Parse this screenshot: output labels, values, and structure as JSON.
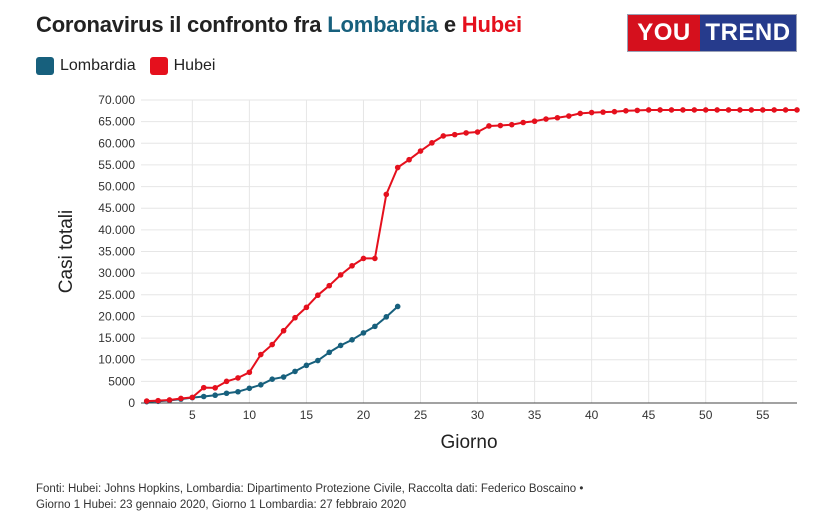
{
  "title": {
    "prefix": "Coronavirus il confronto fra ",
    "lombardia": "Lombardia",
    "mid": " e ",
    "hubei": "Hubei"
  },
  "logo": {
    "left": "YOU",
    "right": "TREND"
  },
  "sources": {
    "line1": "Fonti: Hubei: Johns Hopkins, Lombardia: Dipartimento Protezione Civile, Raccolta dati: Federico Boscaino •",
    "line2": "Giorno 1 Hubei: 23 gennaio 2020, Giorno 1 Lombardia: 27 febbraio 2020"
  },
  "colors": {
    "lombardia": "#17607d",
    "hubei": "#e5101d"
  },
  "chart_data": {
    "type": "line",
    "xlabel": "Giorno",
    "ylabel": "Casi totali",
    "xlim": [
      0.5,
      58
    ],
    "ylim": [
      0,
      70000
    ],
    "xticks": [
      5,
      10,
      15,
      20,
      25,
      30,
      35,
      40,
      45,
      50,
      55
    ],
    "yticks": [
      0,
      5000,
      10000,
      15000,
      20000,
      25000,
      30000,
      35000,
      40000,
      45000,
      50000,
      55000,
      60000,
      65000,
      70000
    ],
    "ytick_labels": [
      "0",
      "5000",
      "10.000",
      "15.000",
      "20.000",
      "25.000",
      "30.000",
      "35.000",
      "40.000",
      "45.000",
      "50.000",
      "55.000",
      "60.000",
      "65.000",
      "70.000"
    ],
    "grid": true,
    "legend": "top-left",
    "series": [
      {
        "name": "Lombardia",
        "color": "#17607d",
        "x": [
          1,
          2,
          3,
          4,
          5,
          6,
          7,
          8,
          9,
          10,
          11,
          12,
          13,
          14,
          15,
          16,
          17,
          18,
          19,
          20,
          21,
          22,
          23
        ],
        "y": [
          300,
          400,
          600,
          900,
          1250,
          1500,
          1800,
          2250,
          2600,
          3400,
          4200,
          5500,
          6000,
          7300,
          8700,
          9800,
          11700,
          13300,
          14600,
          16200,
          17700,
          19900,
          22300
        ]
      },
      {
        "name": "Hubei",
        "color": "#e5101d",
        "x": [
          1,
          2,
          3,
          4,
          5,
          6,
          7,
          8,
          9,
          10,
          11,
          12,
          13,
          14,
          15,
          16,
          17,
          18,
          19,
          20,
          21,
          22,
          23,
          24,
          25,
          26,
          27,
          28,
          29,
          30,
          31,
          32,
          33,
          34,
          35,
          36,
          37,
          38,
          39,
          40,
          41,
          42,
          43,
          44,
          45,
          46,
          47,
          48,
          49,
          50,
          51,
          52,
          53,
          54,
          55,
          56,
          57,
          58
        ],
        "y": [
          450,
          550,
          700,
          1050,
          1300,
          3550,
          3500,
          5000,
          5800,
          7100,
          11200,
          13500,
          16700,
          19700,
          22100,
          24900,
          27100,
          29600,
          31700,
          33400,
          33400,
          48200,
          54400,
          56200,
          58200,
          60100,
          61700,
          62000,
          62400,
          62600,
          64000,
          64100,
          64300,
          64800,
          65100,
          65600,
          65900,
          66300,
          66900,
          67100,
          67200,
          67300,
          67500,
          67600,
          67700,
          67700,
          67700,
          67700,
          67700,
          67700,
          67700,
          67700,
          67700,
          67700,
          67700,
          67700,
          67700,
          67700
        ]
      }
    ]
  }
}
